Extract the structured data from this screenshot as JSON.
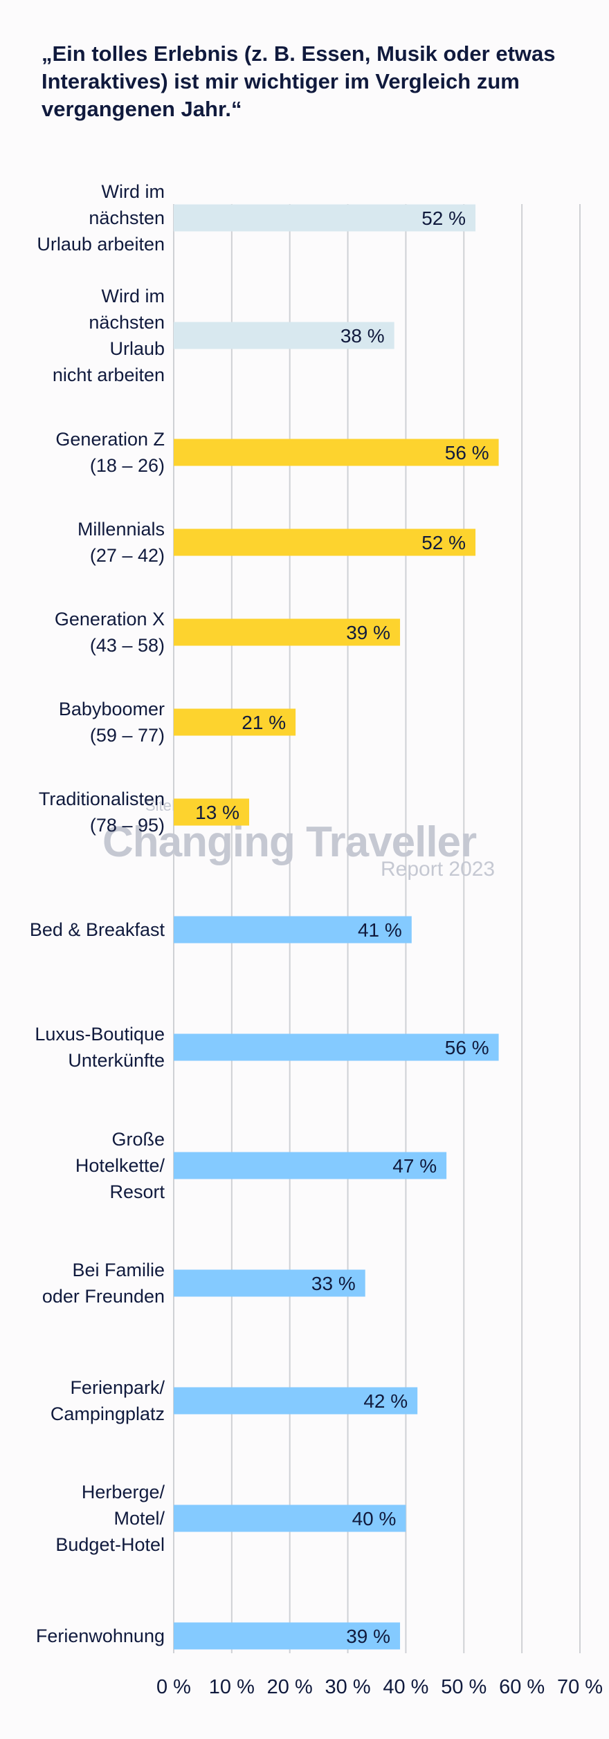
{
  "chart_data": {
    "type": "bar",
    "orientation": "horizontal",
    "title": "„Ein tolles Erlebnis (z. B. Essen, Musik oder etwas Interaktives) ist mir wichtiger im Vergleich zum vergangenen Jahr.“",
    "xlim": [
      0,
      70
    ],
    "x_ticks": [
      "0 %",
      "10 %",
      "20 %",
      "30 %",
      "40 %",
      "50 %",
      "60 %",
      "70 %"
    ],
    "grid": "vertical",
    "value_unit": "%",
    "colors": {
      "work_group": "#d8e8ef",
      "generation_group": "#fdd32e",
      "accommodation_group": "#84caff",
      "grid": "#cfd1d5",
      "text": "#101a3d"
    },
    "categories": [
      {
        "label": [
          "Wird im",
          "nächsten",
          "Urlaub arbeiten"
        ],
        "value": 52,
        "value_label": "52 %",
        "group": "work_group"
      },
      {
        "label": [
          "Wird im",
          "nächsten",
          "Urlaub",
          "nicht arbeiten"
        ],
        "value": 38,
        "value_label": "38 %",
        "group": "work_group"
      },
      {
        "label": [
          "Generation Z",
          "(18 – 26)"
        ],
        "value": 56,
        "value_label": "56 %",
        "group": "generation_group"
      },
      {
        "label": [
          "Millennials",
          "(27 – 42)"
        ],
        "value": 52,
        "value_label": "52 %",
        "group": "generation_group"
      },
      {
        "label": [
          "Generation X",
          "(43 – 58)"
        ],
        "value": 39,
        "value_label": "39 %",
        "group": "generation_group"
      },
      {
        "label": [
          "Babyboomer",
          "(59 – 77)"
        ],
        "value": 21,
        "value_label": "21 %",
        "group": "generation_group"
      },
      {
        "label": [
          "Traditionalisten",
          "(78 – 95)"
        ],
        "value": 13,
        "value_label": "13 %",
        "group": "generation_group"
      },
      {
        "label": [
          "Bed & Breakfast"
        ],
        "value": 41,
        "value_label": "41 %",
        "group": "accommodation_group"
      },
      {
        "label": [
          "Luxus-Boutique",
          "Unterkünfte"
        ],
        "value": 56,
        "value_label": "56 %",
        "group": "accommodation_group"
      },
      {
        "label": [
          "Große",
          "Hotelkette/",
          "Resort"
        ],
        "value": 47,
        "value_label": "47 %",
        "group": "accommodation_group"
      },
      {
        "label": [
          "Bei Familie",
          "oder Freunden"
        ],
        "value": 33,
        "value_label": "33 %",
        "group": "accommodation_group"
      },
      {
        "label": [
          "Ferienpark/",
          "Campingplatz"
        ],
        "value": 42,
        "value_label": "42 %",
        "group": "accommodation_group"
      },
      {
        "label": [
          "Herberge/",
          "Motel/",
          "Budget-Hotel"
        ],
        "value": 40,
        "value_label": "40 %",
        "group": "accommodation_group"
      },
      {
        "label": [
          "Ferienwohnung"
        ],
        "value": 39,
        "value_label": "39 %",
        "group": "accommodation_group"
      }
    ],
    "watermark": {
      "brand": "SiteMinder",
      "title": "Changing Traveller",
      "subtitle": "Report 2023"
    }
  }
}
